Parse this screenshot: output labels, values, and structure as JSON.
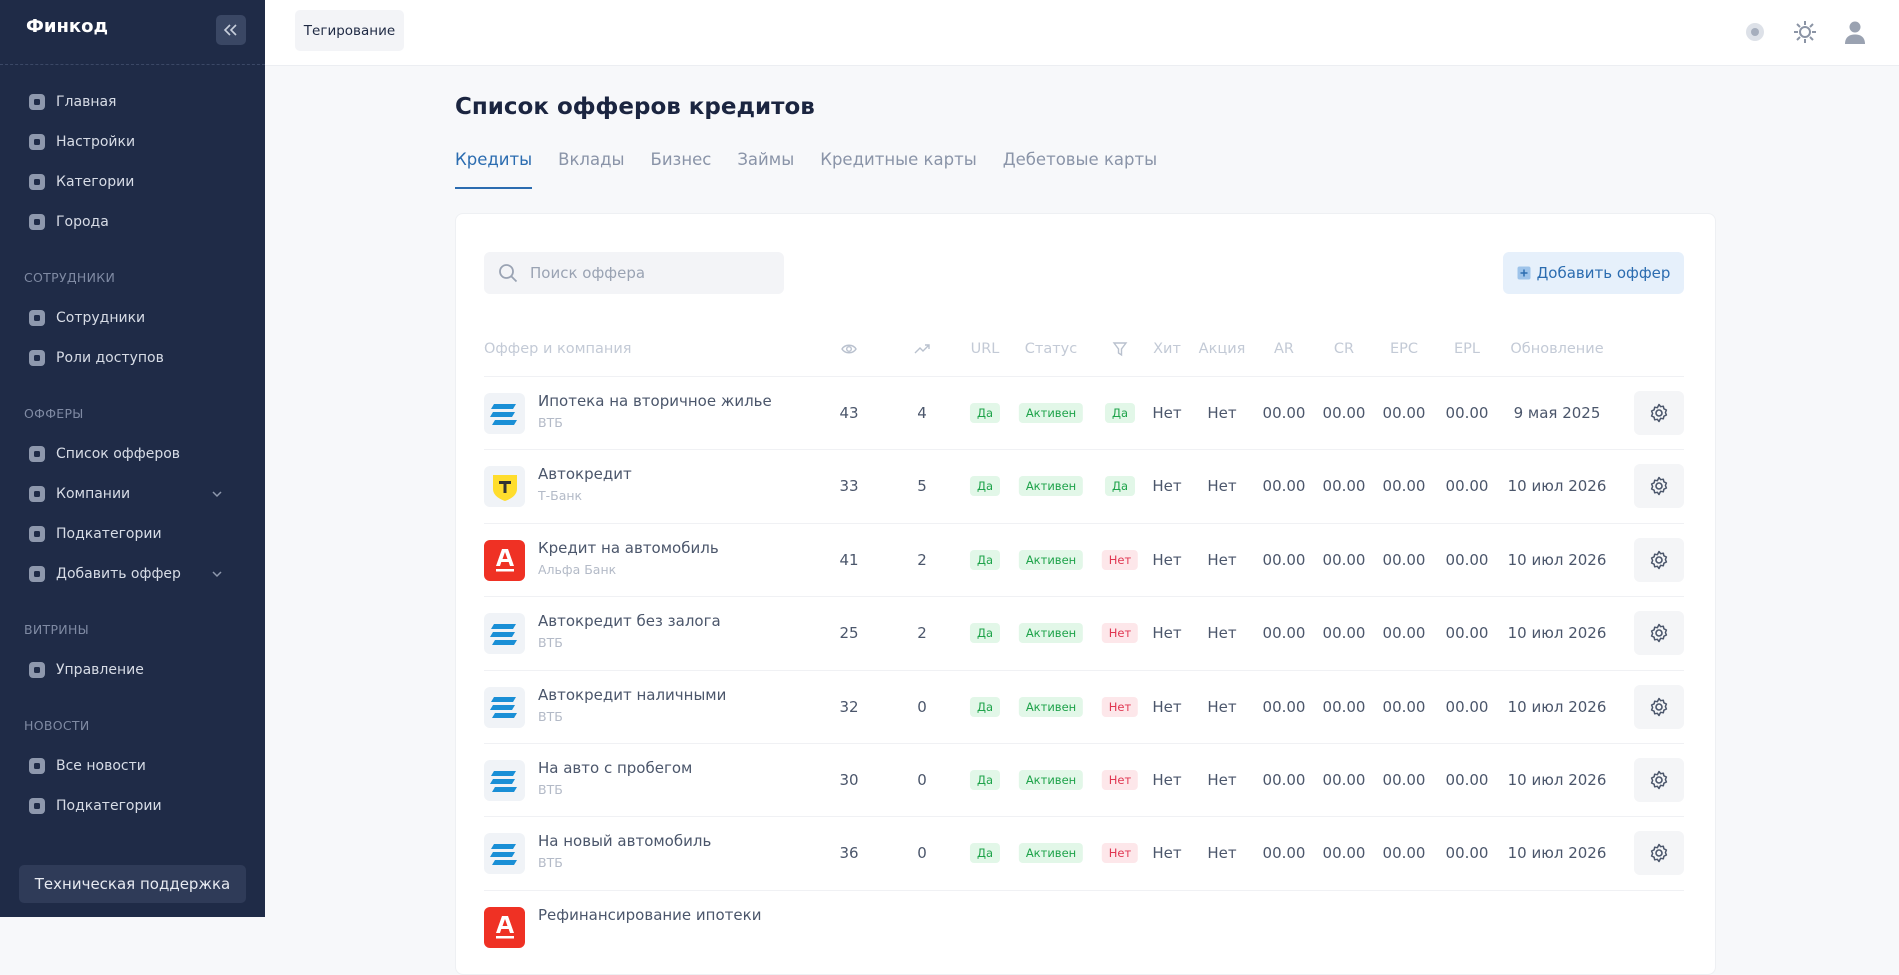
{
  "sidebar": {
    "brand": "Финкод",
    "main": [
      {
        "label": "Главная"
      },
      {
        "label": "Настройки"
      },
      {
        "label": "Категории"
      },
      {
        "label": "Города"
      }
    ],
    "sections": [
      {
        "title": "СОТРУДНИКИ",
        "items": [
          {
            "label": "Сотрудники"
          },
          {
            "label": "Роли доступов"
          }
        ]
      },
      {
        "title": "ОФФЕРЫ",
        "items": [
          {
            "label": "Список офферов"
          },
          {
            "label": "Компании",
            "expandable": true
          },
          {
            "label": "Подкатегории"
          },
          {
            "label": "Добавить оффер",
            "expandable": true
          }
        ]
      },
      {
        "title": "ВИТРИНЫ",
        "items": [
          {
            "label": "Управление"
          }
        ]
      },
      {
        "title": "НОВОСТИ",
        "items": [
          {
            "label": "Все новости"
          },
          {
            "label": "Подкатегории"
          }
        ]
      }
    ],
    "support": "Техническая поддержка"
  },
  "header": {
    "tag_button": "Тегирование"
  },
  "page": {
    "title": "Список офферов кредитов",
    "tabs": [
      "Кредиты",
      "Вклады",
      "Бизнес",
      "Займы",
      "Кредитные карты",
      "Дебетовые карты"
    ],
    "active_tab": 0,
    "search_placeholder": "Поиск оффера",
    "add_button": "Добавить оффер"
  },
  "table": {
    "columns": [
      {
        "label": "Оффер и компания"
      },
      {
        "icon": "eye"
      },
      {
        "icon": "trend"
      },
      {
        "label": "URL"
      },
      {
        "label": "Статус"
      },
      {
        "icon": "filter"
      },
      {
        "label": "Хит"
      },
      {
        "label": "Акция"
      },
      {
        "label": "AR"
      },
      {
        "label": "CR"
      },
      {
        "label": "EPC"
      },
      {
        "label": "EPL"
      },
      {
        "label": "Обновление"
      }
    ],
    "rows": [
      {
        "name": "Ипотека на вторичное жилье",
        "company": "ВТБ",
        "logo": "vtb",
        "views": 43,
        "clicks": 4,
        "url": {
          "text": "Да",
          "tone": "green"
        },
        "status": {
          "text": "Активен",
          "tone": "green"
        },
        "filter": {
          "text": "Да",
          "tone": "green"
        },
        "hit": "Нет",
        "promo": "Нет",
        "ar": "00.00",
        "cr": "00.00",
        "epc": "00.00",
        "epl": "00.00",
        "updated": "9 мая 2025"
      },
      {
        "name": "Автокредит",
        "company": "Т-Банк",
        "logo": "tbank",
        "views": 33,
        "clicks": 5,
        "url": {
          "text": "Да",
          "tone": "green"
        },
        "status": {
          "text": "Активен",
          "tone": "green"
        },
        "filter": {
          "text": "Да",
          "tone": "green"
        },
        "hit": "Нет",
        "promo": "Нет",
        "ar": "00.00",
        "cr": "00.00",
        "epc": "00.00",
        "epl": "00.00",
        "updated": "10 июл 2026"
      },
      {
        "name": "Кредит на автомобиль",
        "company": "Альфа Банк",
        "logo": "alfa",
        "views": 41,
        "clicks": 2,
        "url": {
          "text": "Да",
          "tone": "green"
        },
        "status": {
          "text": "Активен",
          "tone": "green"
        },
        "filter": {
          "text": "Нет",
          "tone": "red"
        },
        "hit": "Нет",
        "promo": "Нет",
        "ar": "00.00",
        "cr": "00.00",
        "epc": "00.00",
        "epl": "00.00",
        "updated": "10 июл 2026"
      },
      {
        "name": "Автокредит без залога",
        "company": "ВТБ",
        "logo": "vtb",
        "views": 25,
        "clicks": 2,
        "url": {
          "text": "Да",
          "tone": "green"
        },
        "status": {
          "text": "Активен",
          "tone": "green"
        },
        "filter": {
          "text": "Нет",
          "tone": "red"
        },
        "hit": "Нет",
        "promo": "Нет",
        "ar": "00.00",
        "cr": "00.00",
        "epc": "00.00",
        "epl": "00.00",
        "updated": "10 июл 2026"
      },
      {
        "name": "Автокредит наличными",
        "company": "ВТБ",
        "logo": "vtb",
        "views": 32,
        "clicks": 0,
        "url": {
          "text": "Да",
          "tone": "green"
        },
        "status": {
          "text": "Активен",
          "tone": "green"
        },
        "filter": {
          "text": "Нет",
          "tone": "red"
        },
        "hit": "Нет",
        "promo": "Нет",
        "ar": "00.00",
        "cr": "00.00",
        "epc": "00.00",
        "epl": "00.00",
        "updated": "10 июл 2026"
      },
      {
        "name": "На авто с пробегом",
        "company": "ВТБ",
        "logo": "vtb",
        "views": 30,
        "clicks": 0,
        "url": {
          "text": "Да",
          "tone": "green"
        },
        "status": {
          "text": "Активен",
          "tone": "green"
        },
        "filter": {
          "text": "Нет",
          "tone": "red"
        },
        "hit": "Нет",
        "promo": "Нет",
        "ar": "00.00",
        "cr": "00.00",
        "epc": "00.00",
        "epl": "00.00",
        "updated": "10 июл 2026"
      },
      {
        "name": "На новый автомобиль",
        "company": "ВТБ",
        "logo": "vtb",
        "views": 36,
        "clicks": 0,
        "url": {
          "text": "Да",
          "tone": "green"
        },
        "status": {
          "text": "Активен",
          "tone": "green"
        },
        "filter": {
          "text": "Нет",
          "tone": "red"
        },
        "hit": "Нет",
        "promo": "Нет",
        "ar": "00.00",
        "cr": "00.00",
        "epc": "00.00",
        "epl": "00.00",
        "updated": "10 июл 2026"
      },
      {
        "name": "Рефинансирование ипотеки",
        "logo": "alfa"
      }
    ]
  }
}
